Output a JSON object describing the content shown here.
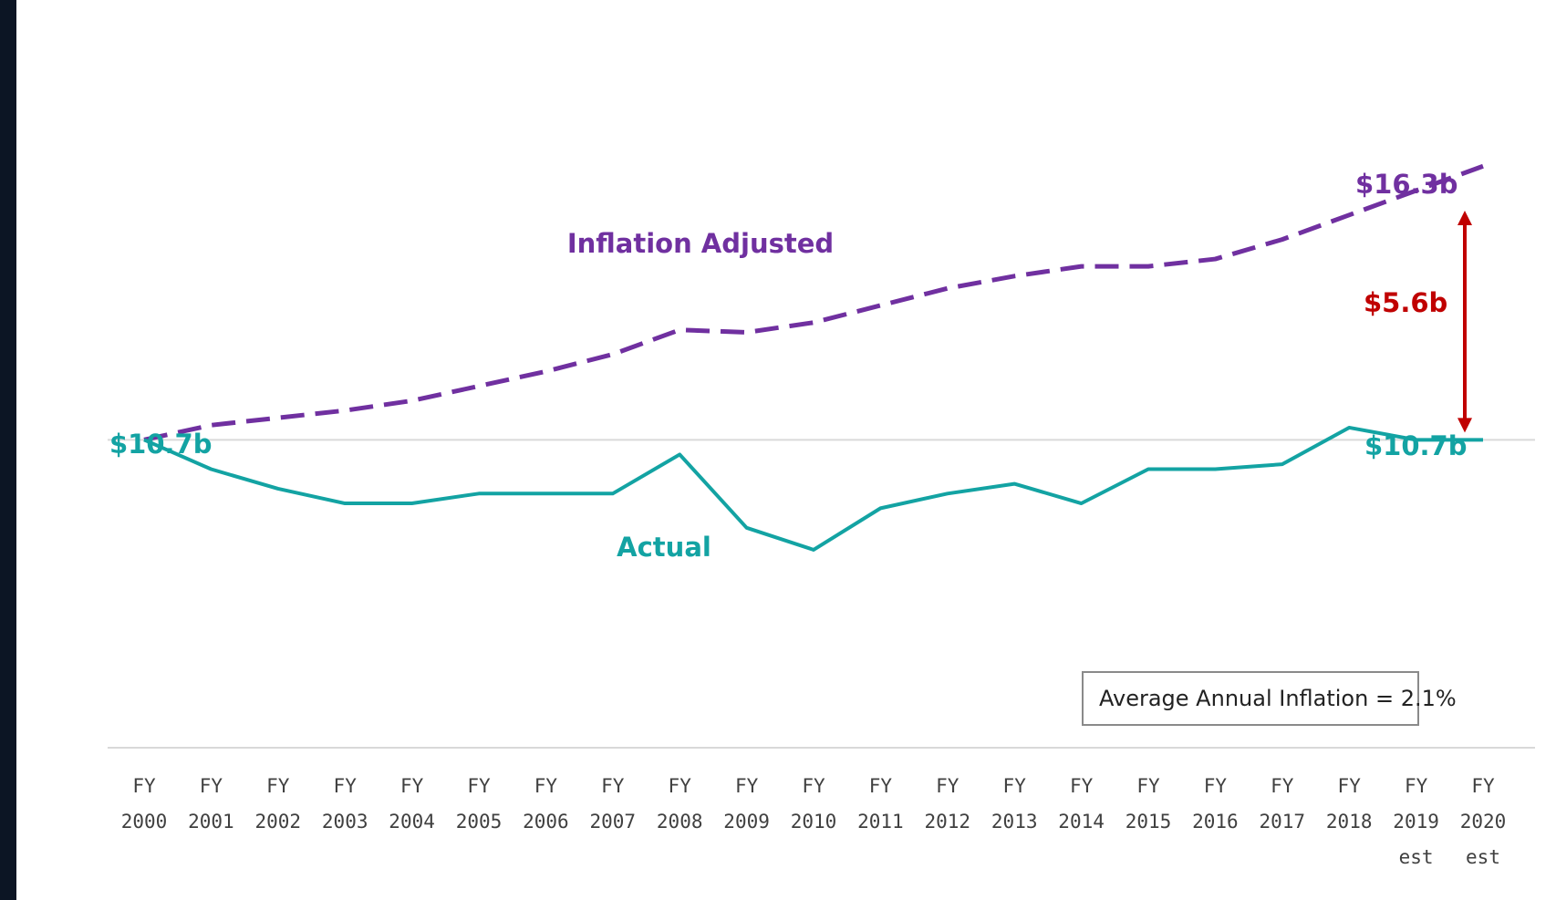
{
  "chart_data": {
    "type": "line",
    "categories": [
      "FY 2000",
      "FY 2001",
      "FY 2002",
      "FY 2003",
      "FY 2004",
      "FY 2005",
      "FY 2006",
      "FY 2007",
      "FY 2008",
      "FY 2009",
      "FY 2010",
      "FY 2011",
      "FY 2012",
      "FY 2013",
      "FY 2014",
      "FY 2015",
      "FY 2016",
      "FY 2017",
      "FY 2018",
      "FY 2019 est",
      "FY 2020 est"
    ],
    "series": [
      {
        "name": "Inflation Adjusted",
        "color": "#7030a0",
        "style": "dashed",
        "values": [
          10.7,
          11.0,
          11.15,
          11.3,
          11.5,
          11.8,
          12.1,
          12.45,
          12.95,
          12.9,
          13.1,
          13.45,
          13.8,
          14.05,
          14.25,
          14.25,
          14.4,
          14.8,
          15.3,
          15.8,
          16.3
        ]
      },
      {
        "name": "Actual",
        "color": "#13a3a3",
        "style": "solid",
        "values": [
          10.7,
          10.1,
          9.7,
          9.4,
          9.4,
          9.6,
          9.6,
          9.6,
          10.4,
          8.9,
          8.45,
          9.3,
          9.6,
          9.8,
          9.4,
          10.1,
          10.1,
          10.2,
          10.95,
          10.7,
          10.7
        ]
      }
    ],
    "ylim": [
      4.4,
      19.7
    ],
    "grid": false,
    "annotations": {
      "start_value": "$10.7b",
      "end_actual": "$10.7b",
      "end_adjusted": "$16.3b",
      "gap": "$5.6b",
      "gap_color": "#c00000",
      "inflation_note": "Average Annual Inflation = 2.1%"
    }
  }
}
